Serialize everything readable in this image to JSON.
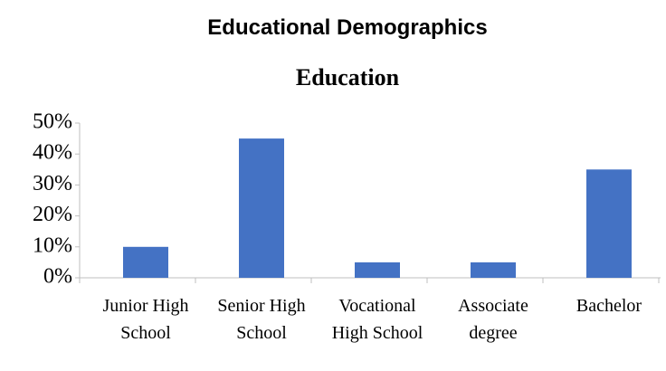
{
  "chart_data": {
    "type": "bar",
    "page_title": "Educational Demographics",
    "title": "Education",
    "categories": [
      "Junior High School",
      "Senior High School",
      "Vocational High School",
      "Associate degree",
      "Bachelor"
    ],
    "values": [
      10,
      45,
      5,
      5,
      35
    ],
    "color": "#4472c4",
    "ylim": [
      0,
      50
    ],
    "yticks": [
      {
        "value": 0,
        "label": "0%"
      },
      {
        "value": 10,
        "label": "10%"
      },
      {
        "value": 20,
        "label": "20%"
      },
      {
        "value": 30,
        "label": "30%"
      },
      {
        "value": 40,
        "label": "40%"
      },
      {
        "value": 50,
        "label": "50%"
      }
    ],
    "grid": false
  }
}
